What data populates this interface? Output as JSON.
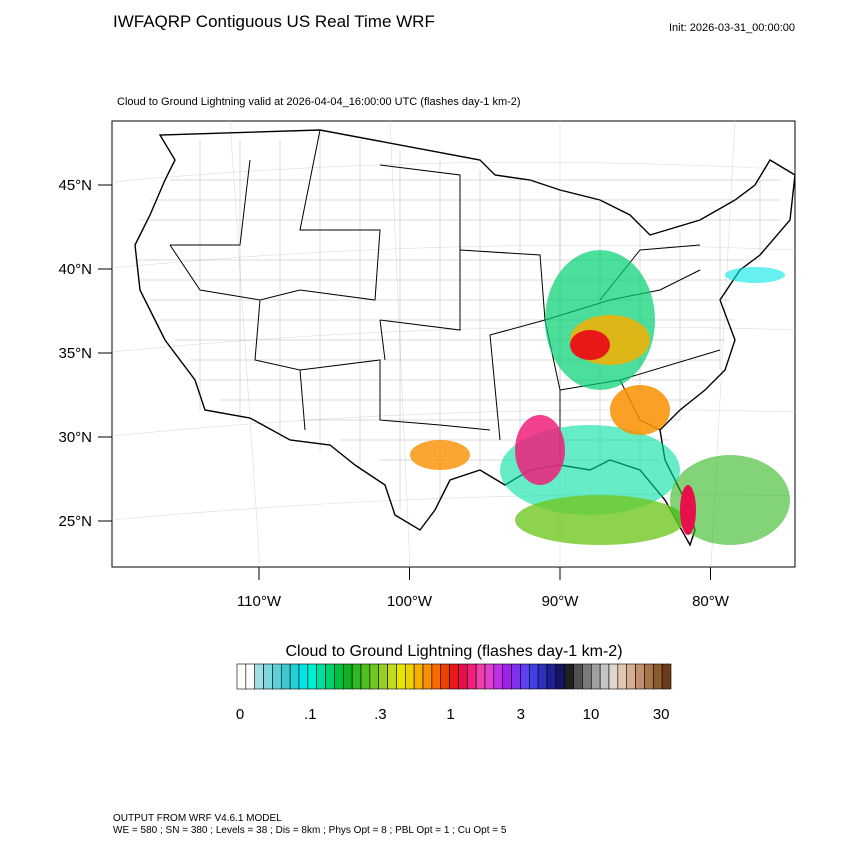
{
  "header": {
    "title": "IWFAQRP Contiguous US Real Time WRF",
    "init": "Init: 2026-03-31_00:00:00"
  },
  "map": {
    "subtitle": "Cloud to Ground Lightning valid at 2026-04-04_16:00:00 UTC   (flashes day-1 km-2)",
    "lat_labels": [
      "45°N",
      "40°N",
      "35°N",
      "30°N",
      "25°N"
    ],
    "lon_labels": [
      "110°W",
      "100°W",
      "90°W",
      "80°W"
    ]
  },
  "colorbar": {
    "title": "Cloud to Ground Lightning  (flashes day-1 km-2)",
    "labels": [
      "0",
      ".1",
      ".3",
      "1",
      "3",
      "10",
      "30"
    ],
    "colors": [
      "#ffffff",
      "#ffffff",
      "#9ee0e6",
      "#7fd8de",
      "#5cd0d6",
      "#3cc8cf",
      "#1ed2d8",
      "#00e6e6",
      "#00f0d0",
      "#00e0a0",
      "#00d070",
      "#00c040",
      "#10b020",
      "#30b820",
      "#50c020",
      "#70c820",
      "#98d020",
      "#c0dc20",
      "#e6e600",
      "#f0d000",
      "#f6b000",
      "#fa9000",
      "#fa6a00",
      "#f04000",
      "#e81818",
      "#e8104a",
      "#f0207a",
      "#f040a8",
      "#e040d0",
      "#c030e8",
      "#a020f0",
      "#8030f0",
      "#6040f0",
      "#4040e0",
      "#3030c0",
      "#202090",
      "#141460",
      "#202020",
      "#505050",
      "#7a7a7a",
      "#a0a0a0",
      "#c4c4c4",
      "#e0d8d0",
      "#e0c8b0",
      "#d4b090",
      "#c09070",
      "#a87448",
      "#8c5a30",
      "#6a3c18"
    ]
  },
  "footer": {
    "line1": "OUTPUT FROM WRF V4.6.1 MODEL",
    "line2": "WE = 580 ; SN = 380 ; Levels = 38 ; Dis = 8km ; Phys Opt = 8 ; PBL Opt = 1 ; Cu Opt = 5"
  }
}
